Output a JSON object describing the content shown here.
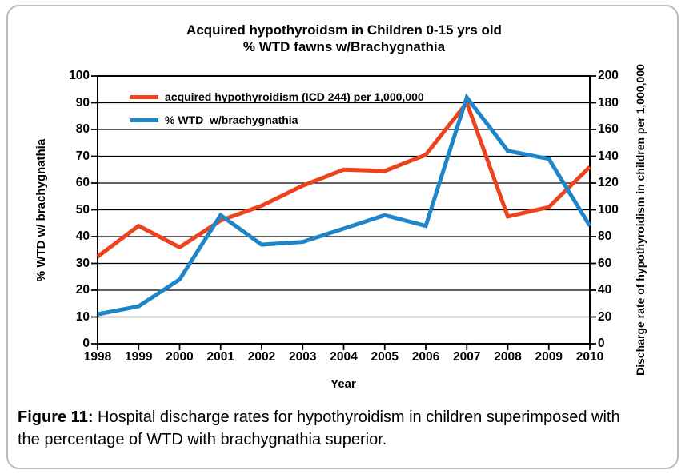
{
  "chart_data": {
    "type": "line",
    "title_line1": "Acquired hypothyroidsm in Children 0-15 yrs old",
    "title_line2": "% WTD fawns w/Brachygnathia",
    "xlabel": "Year",
    "x": [
      1998,
      1999,
      2000,
      2001,
      2002,
      2003,
      2004,
      2005,
      2006,
      2007,
      2008,
      2009,
      2010
    ],
    "left_axis": {
      "label": "% WTD w/ brachygnathia",
      "min": 0,
      "max": 100,
      "step": 10,
      "ticks": [
        0,
        10,
        20,
        30,
        40,
        50,
        60,
        70,
        80,
        90,
        100
      ]
    },
    "right_axis": {
      "label": "Discharge rate of hypothyroidism in children per 1,000,000",
      "min": 0,
      "max": 200,
      "step": 20,
      "ticks": [
        0,
        20,
        40,
        60,
        80,
        100,
        120,
        140,
        160,
        180,
        200
      ]
    },
    "grid": "horizontal",
    "legend_position": "top-left-inside",
    "series": [
      {
        "name": "acquired hypothyroidism (ICD 244) per 1,000,000",
        "axis": "right",
        "color": "#ed421d",
        "values": [
          65,
          88,
          72,
          92,
          103,
          118,
          130,
          129,
          141,
          180,
          95,
          102,
          132
        ]
      },
      {
        "name": "% WTD  w/brachygnathia",
        "axis": "left",
        "color": "#1e86c8",
        "values": [
          11,
          14,
          24,
          48,
          37,
          38,
          43,
          48,
          44,
          92,
          72,
          69,
          44
        ]
      }
    ]
  },
  "caption": {
    "label": "Figure 11:",
    "text": " Hospital discharge rates for hypothyroidism in children superimposed with the percentage of WTD with brachygnathia superior."
  }
}
